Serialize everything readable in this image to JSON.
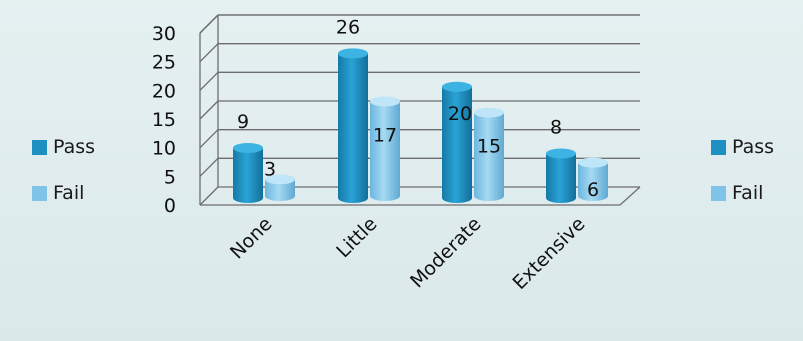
{
  "chart_data": {
    "type": "bar",
    "title": "",
    "xlabel": "",
    "ylabel": "",
    "categories": [
      "None",
      "Little",
      "Moderate",
      "Extensive"
    ],
    "series": [
      {
        "name": "Pass",
        "values": [
          9,
          26,
          20,
          8
        ]
      },
      {
        "name": "Fail",
        "values": [
          3,
          17,
          15,
          6
        ]
      }
    ],
    "ylim": [
      0,
      30
    ],
    "y_ticks": [
      "0",
      "5",
      "10",
      "15",
      "20",
      "25",
      "30"
    ],
    "grid": true,
    "three_d": true,
    "legend_position": "left and right",
    "colors": {
      "Pass": "#1d8fc0",
      "Fail": "#7fc4e8"
    }
  },
  "legends": {
    "left": {
      "items": [
        {
          "label": "Pass"
        },
        {
          "label": "Fail"
        }
      ]
    },
    "right": {
      "items": [
        {
          "label": "Pass"
        },
        {
          "label": "Fail"
        }
      ]
    }
  }
}
